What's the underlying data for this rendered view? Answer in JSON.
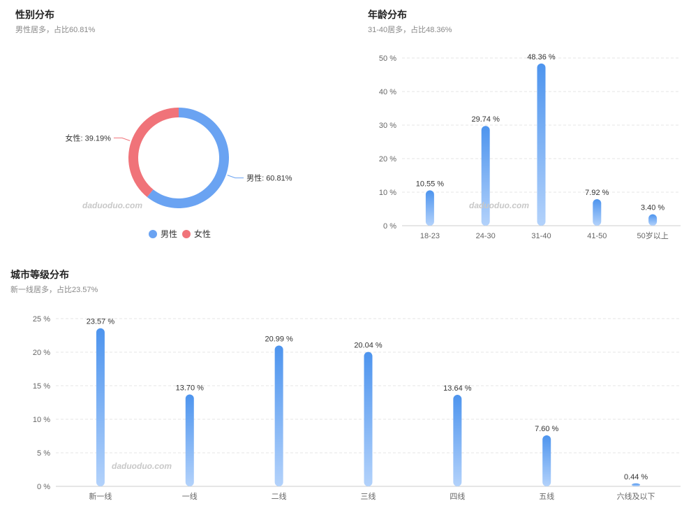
{
  "colors": {
    "male": "#6aa3f2",
    "female": "#f07379",
    "bar_top": "#4d94ee",
    "bar_bottom": "#b3d2fb",
    "grid": "#e5e5e5"
  },
  "watermark": "daduoduo.com",
  "chart_data": [
    {
      "id": "gender",
      "type": "pie",
      "title": "性别分布",
      "subtitle": "男性居多，占比60.81%",
      "slices": [
        {
          "name": "男性",
          "value": 60.81,
          "label": "男性: 60.81%",
          "color": "#6aa3f2"
        },
        {
          "name": "女性",
          "value": 39.19,
          "label": "女性: 39.19%",
          "color": "#f07379"
        }
      ],
      "legend": [
        "男性",
        "女性"
      ],
      "legend_position": "bottom"
    },
    {
      "id": "age",
      "type": "bar",
      "title": "年龄分布",
      "subtitle": "31-40居多，占比48.36%",
      "categories": [
        "18-23",
        "24-30",
        "31-40",
        "41-50",
        "50岁以上"
      ],
      "values": [
        10.55,
        29.74,
        48.36,
        7.92,
        3.4
      ],
      "labels": [
        "10.55 %",
        "29.74 %",
        "48.36 %",
        "7.92 %",
        "3.40 %"
      ],
      "ylim": [
        0,
        50
      ],
      "yticks": [
        0,
        10,
        20,
        30,
        40,
        50
      ],
      "ytick_labels": [
        "0 %",
        "10 %",
        "20 %",
        "30 %",
        "40 %",
        "50 %"
      ],
      "grid": true
    },
    {
      "id": "city",
      "type": "bar",
      "title": "城市等级分布",
      "subtitle": "新一线居多，占比23.57%",
      "categories": [
        "新一线",
        "一线",
        "二线",
        "三线",
        "四线",
        "五线",
        "六线及以下"
      ],
      "values": [
        23.57,
        13.7,
        20.99,
        20.04,
        13.64,
        7.6,
        0.44
      ],
      "labels": [
        "23.57 %",
        "13.70 %",
        "20.99 %",
        "20.04 %",
        "13.64 %",
        "7.60 %",
        "0.44 %"
      ],
      "ylim": [
        0,
        25
      ],
      "yticks": [
        0,
        5,
        10,
        15,
        20,
        25
      ],
      "ytick_labels": [
        "0 %",
        "5 %",
        "10 %",
        "15 %",
        "20 %",
        "25 %"
      ],
      "grid": true
    }
  ]
}
